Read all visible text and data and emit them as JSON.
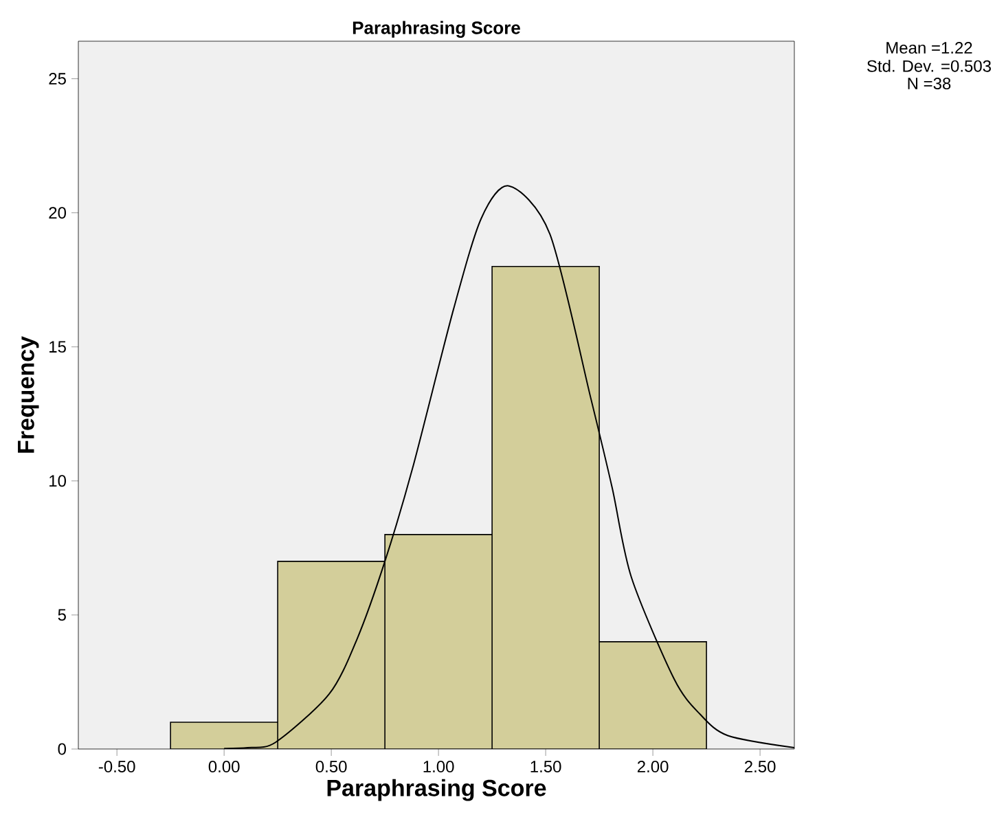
{
  "chart_data": {
    "type": "histogram",
    "title": "Paraphrasing Score",
    "xlabel": "Paraphrasing Score",
    "ylabel": "Frequency",
    "bins": [
      -0.25,
      0.25,
      0.75,
      1.25,
      1.75,
      2.25
    ],
    "values": [
      1,
      7,
      8,
      18,
      4
    ],
    "color": "#d3ce9a",
    "series": [
      {
        "type": "line",
        "color": "#000000",
        "x": [
          0.0,
          0.11,
          0.24,
          0.49,
          0.62,
          0.75,
          0.88,
          1.07,
          1.2,
          1.33,
          1.52,
          1.71,
          1.81,
          1.9,
          2.1,
          2.22,
          2.35,
          2.66
        ],
        "values": [
          0.02,
          0.05,
          0.25,
          2.05,
          4.1,
          7.0,
          10.5,
          16.4,
          19.8,
          21.0,
          19.2,
          13.1,
          9.75,
          6.4,
          2.6,
          1.3,
          0.5,
          0.05
        ]
      }
    ],
    "xlim": [
      -0.68,
      2.66
    ],
    "ylim": [
      0,
      26.4
    ],
    "xticks": [
      {
        "value": -0.5,
        "label": "-0.50"
      },
      {
        "value": 0,
        "label": "0.00"
      },
      {
        "value": 0.5,
        "label": "0.50"
      },
      {
        "value": 1,
        "label": "1.00"
      },
      {
        "value": 1.5,
        "label": "1.50"
      },
      {
        "value": 2,
        "label": "2.00"
      },
      {
        "value": 2.5,
        "label": "2.50"
      }
    ],
    "yticks": [
      0,
      5,
      10,
      15,
      20,
      25
    ],
    "grid": false,
    "annotations": [
      "Mean =1.22",
      "Std. Dev. =0.503",
      "N =38"
    ]
  }
}
